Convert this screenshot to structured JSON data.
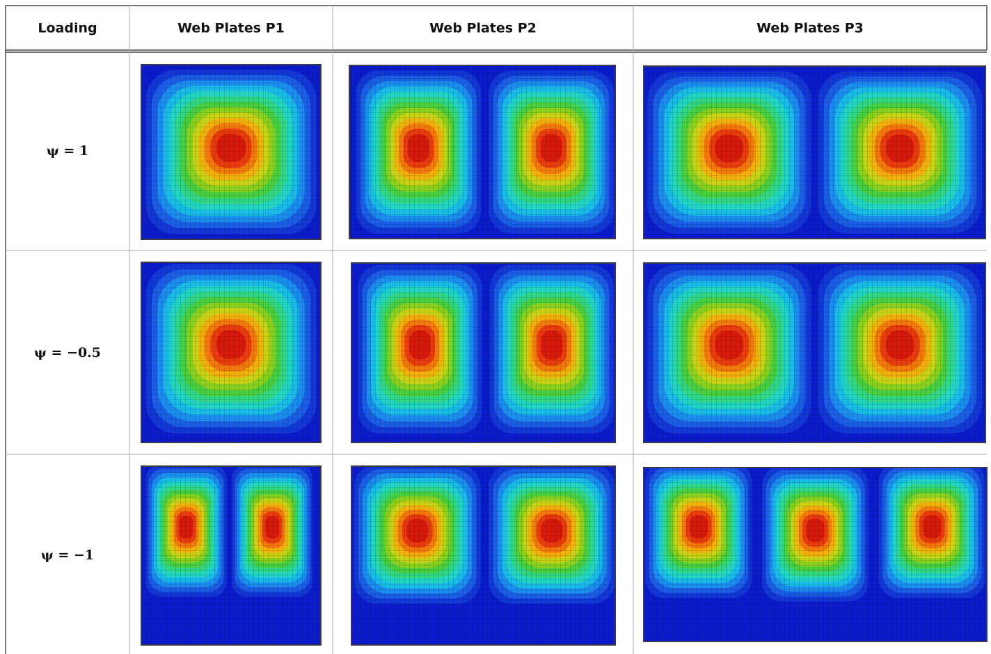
{
  "table": {
    "header": [
      "Loading",
      "Web Plates P1",
      "Web Plates P2",
      "Web Plates P3"
    ],
    "rows": [
      "ψ = 1",
      "ψ = −0.5",
      "ψ = −1"
    ]
  }
}
